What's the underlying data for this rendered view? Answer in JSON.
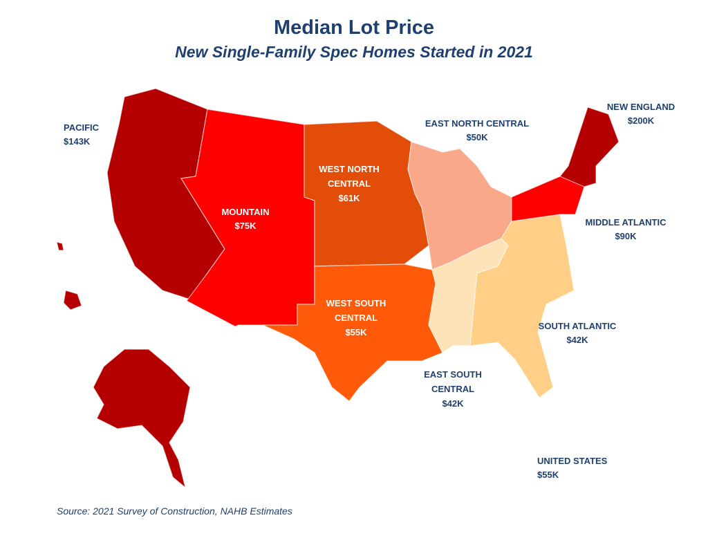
{
  "title": "Median Lot Price",
  "subtitle": "New Single-Family Spec Homes Started in 2021",
  "source": "Source: 2021 Survey of Construction, NAHB Estimates",
  "regions": {
    "pacific": {
      "name": "PACIFIC",
      "value": "$143K",
      "color": "#b40000"
    },
    "mountain": {
      "name": "MOUNTAIN",
      "value": "$75K",
      "color": "#ff0000"
    },
    "west_north_central": {
      "name_line1": "WEST NORTH",
      "name_line2": "CENTRAL",
      "value": "$61K",
      "color": "#e24e0a"
    },
    "west_south_central": {
      "name_line1": "WEST SOUTH",
      "name_line2": "CENTRAL",
      "value": "$55K",
      "color": "#ff5a0a"
    },
    "east_north_central": {
      "name": "EAST NORTH CENTRAL",
      "value": "$50K",
      "color": "#f9a98a"
    },
    "east_south_central": {
      "name_line1": "EAST SOUTH",
      "name_line2": "CENTRAL",
      "value": "$42K",
      "color": "#fde3b8"
    },
    "south_atlantic": {
      "name": "SOUTH ATLANTIC",
      "value": "$42K",
      "color": "#ffcf88"
    },
    "middle_atlantic": {
      "name": "MIDDLE ATLANTIC",
      "value": "$90K",
      "color": "#ff0000"
    },
    "new_england": {
      "name": "NEW ENGLAND",
      "value": "$200K",
      "color": "#b40000"
    }
  },
  "united_states": {
    "name": "UNITED STATES",
    "value": "$55K"
  }
}
